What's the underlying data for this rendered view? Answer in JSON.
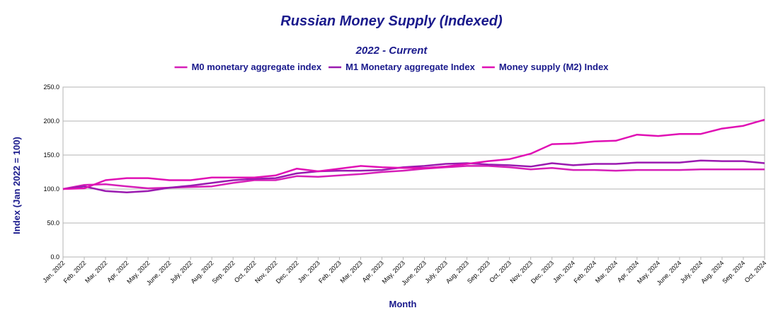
{
  "chart_data": {
    "type": "line",
    "title": "Russian Money Supply (Indexed)",
    "subtitle": "2022 - Current",
    "xlabel": "Month",
    "ylabel": "Index (Jan 2022 = 100)",
    "ylim": [
      0,
      250
    ],
    "yticks": [
      "0.0",
      "50.0",
      "100.0",
      "150.0",
      "200.0",
      "250.0"
    ],
    "grid": true,
    "legend_position": "top",
    "categories": [
      "Jan, 2022",
      "Feb, 2022",
      "Mar, 2022",
      "Apr, 2022",
      "May, 2022",
      "June, 2022",
      "July, 2022",
      "Aug, 2022",
      "Sep, 2022",
      "Oct, 2022",
      "Nov, 2022",
      "Dec, 2022",
      "Jan, 2023",
      "Feb, 2023",
      "Mar, 2023",
      "Apr, 2023",
      "May, 2023",
      "June, 2023",
      "July, 2023",
      "Aug, 2023",
      "Sep, 2023",
      "Oct, 2023",
      "Nov, 2023",
      "Dec, 2023",
      "Jan, 2024",
      "Feb, 2024",
      "Mar, 2024",
      "Apr, 2024",
      "May, 2024",
      "June, 2024",
      "July, 2024",
      "Aug, 2024",
      "Sep, 2024",
      "Oct, 2024"
    ],
    "series": [
      {
        "name": "M0 monetary aggregate index",
        "color": "#d61fb8",
        "values": [
          100,
          106,
          107,
          104,
          101,
          102,
          103,
          104,
          109,
          113,
          113,
          119,
          118,
          120,
          122,
          125,
          127,
          130,
          132,
          134,
          134,
          132,
          129,
          131,
          128,
          128,
          127,
          128,
          128,
          128,
          129,
          129,
          129,
          129
        ]
      },
      {
        "name": "M1 Monetary aggregate Index",
        "color": "#9a1ab0",
        "values": [
          100,
          104,
          97,
          95,
          97,
          102,
          105,
          109,
          113,
          115,
          116,
          123,
          126,
          127,
          127,
          128,
          132,
          134,
          137,
          138,
          136,
          135,
          133,
          138,
          135,
          137,
          137,
          139,
          139,
          139,
          142,
          141,
          141,
          138
        ]
      },
      {
        "name": "Money supply (M2) Index",
        "color": "#e010b4",
        "values": [
          100,
          101,
          113,
          116,
          116,
          113,
          113,
          117,
          117,
          117,
          120,
          130,
          126,
          130,
          134,
          132,
          131,
          131,
          133,
          137,
          141,
          144,
          152,
          166,
          167,
          170,
          171,
          180,
          178,
          181,
          181,
          189,
          193,
          202
        ]
      }
    ]
  }
}
